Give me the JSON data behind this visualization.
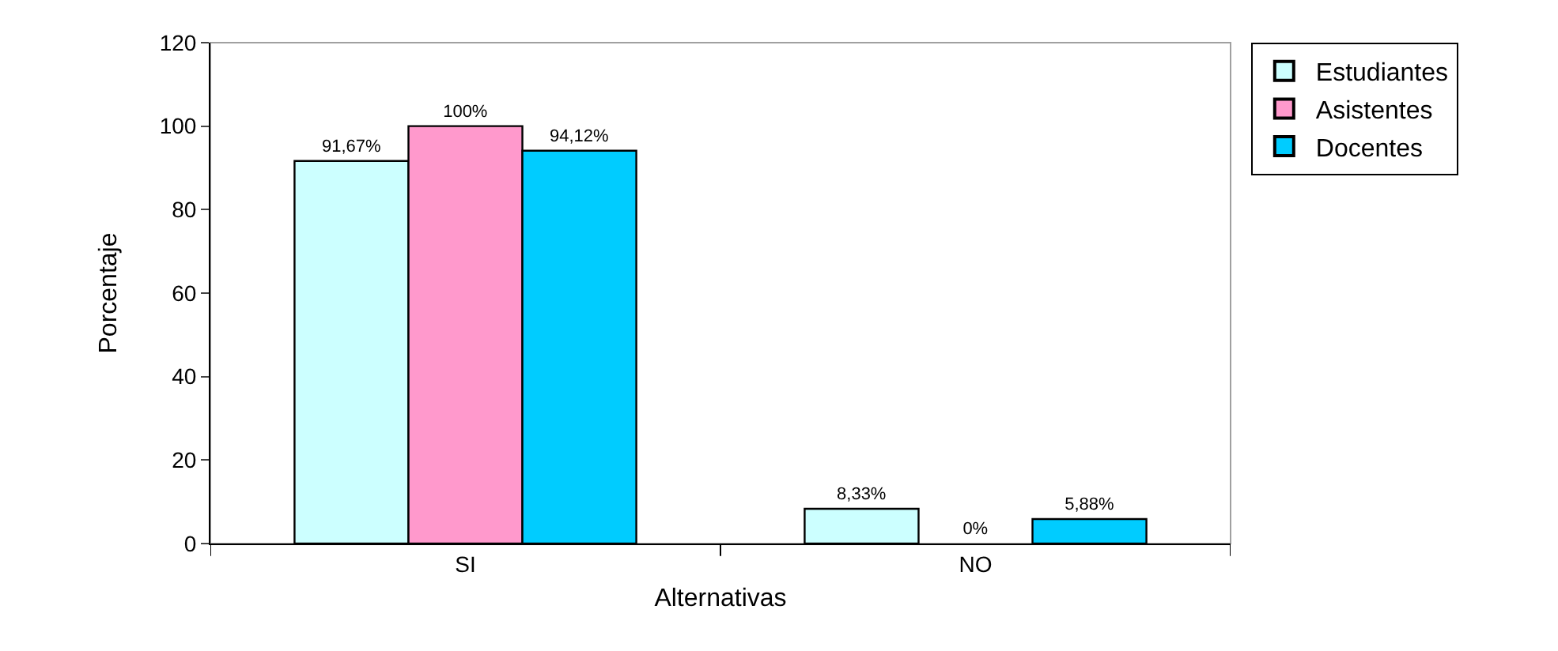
{
  "chart_data": {
    "type": "bar",
    "xlabel": "Alternativas",
    "ylabel": "Porcentaje",
    "categories": [
      "SI",
      "NO"
    ],
    "series": [
      {
        "name": "Estudiantes",
        "color": "#ccffff",
        "values": [
          91.67,
          8.33
        ],
        "value_labels": [
          "91,67%",
          "8,33%"
        ]
      },
      {
        "name": "Asistentes",
        "color": "#ff99cc",
        "values": [
          100,
          0
        ],
        "value_labels": [
          "100%",
          "0%"
        ]
      },
      {
        "name": "Docentes",
        "color": "#00ccff",
        "values": [
          94.12,
          5.88
        ],
        "value_labels": [
          "94,12%",
          "5,88%"
        ]
      }
    ],
    "ylim": [
      0,
      120
    ],
    "yticks": [
      0,
      20,
      40,
      60,
      80,
      100,
      120
    ],
    "grid": false,
    "legend": "right"
  }
}
